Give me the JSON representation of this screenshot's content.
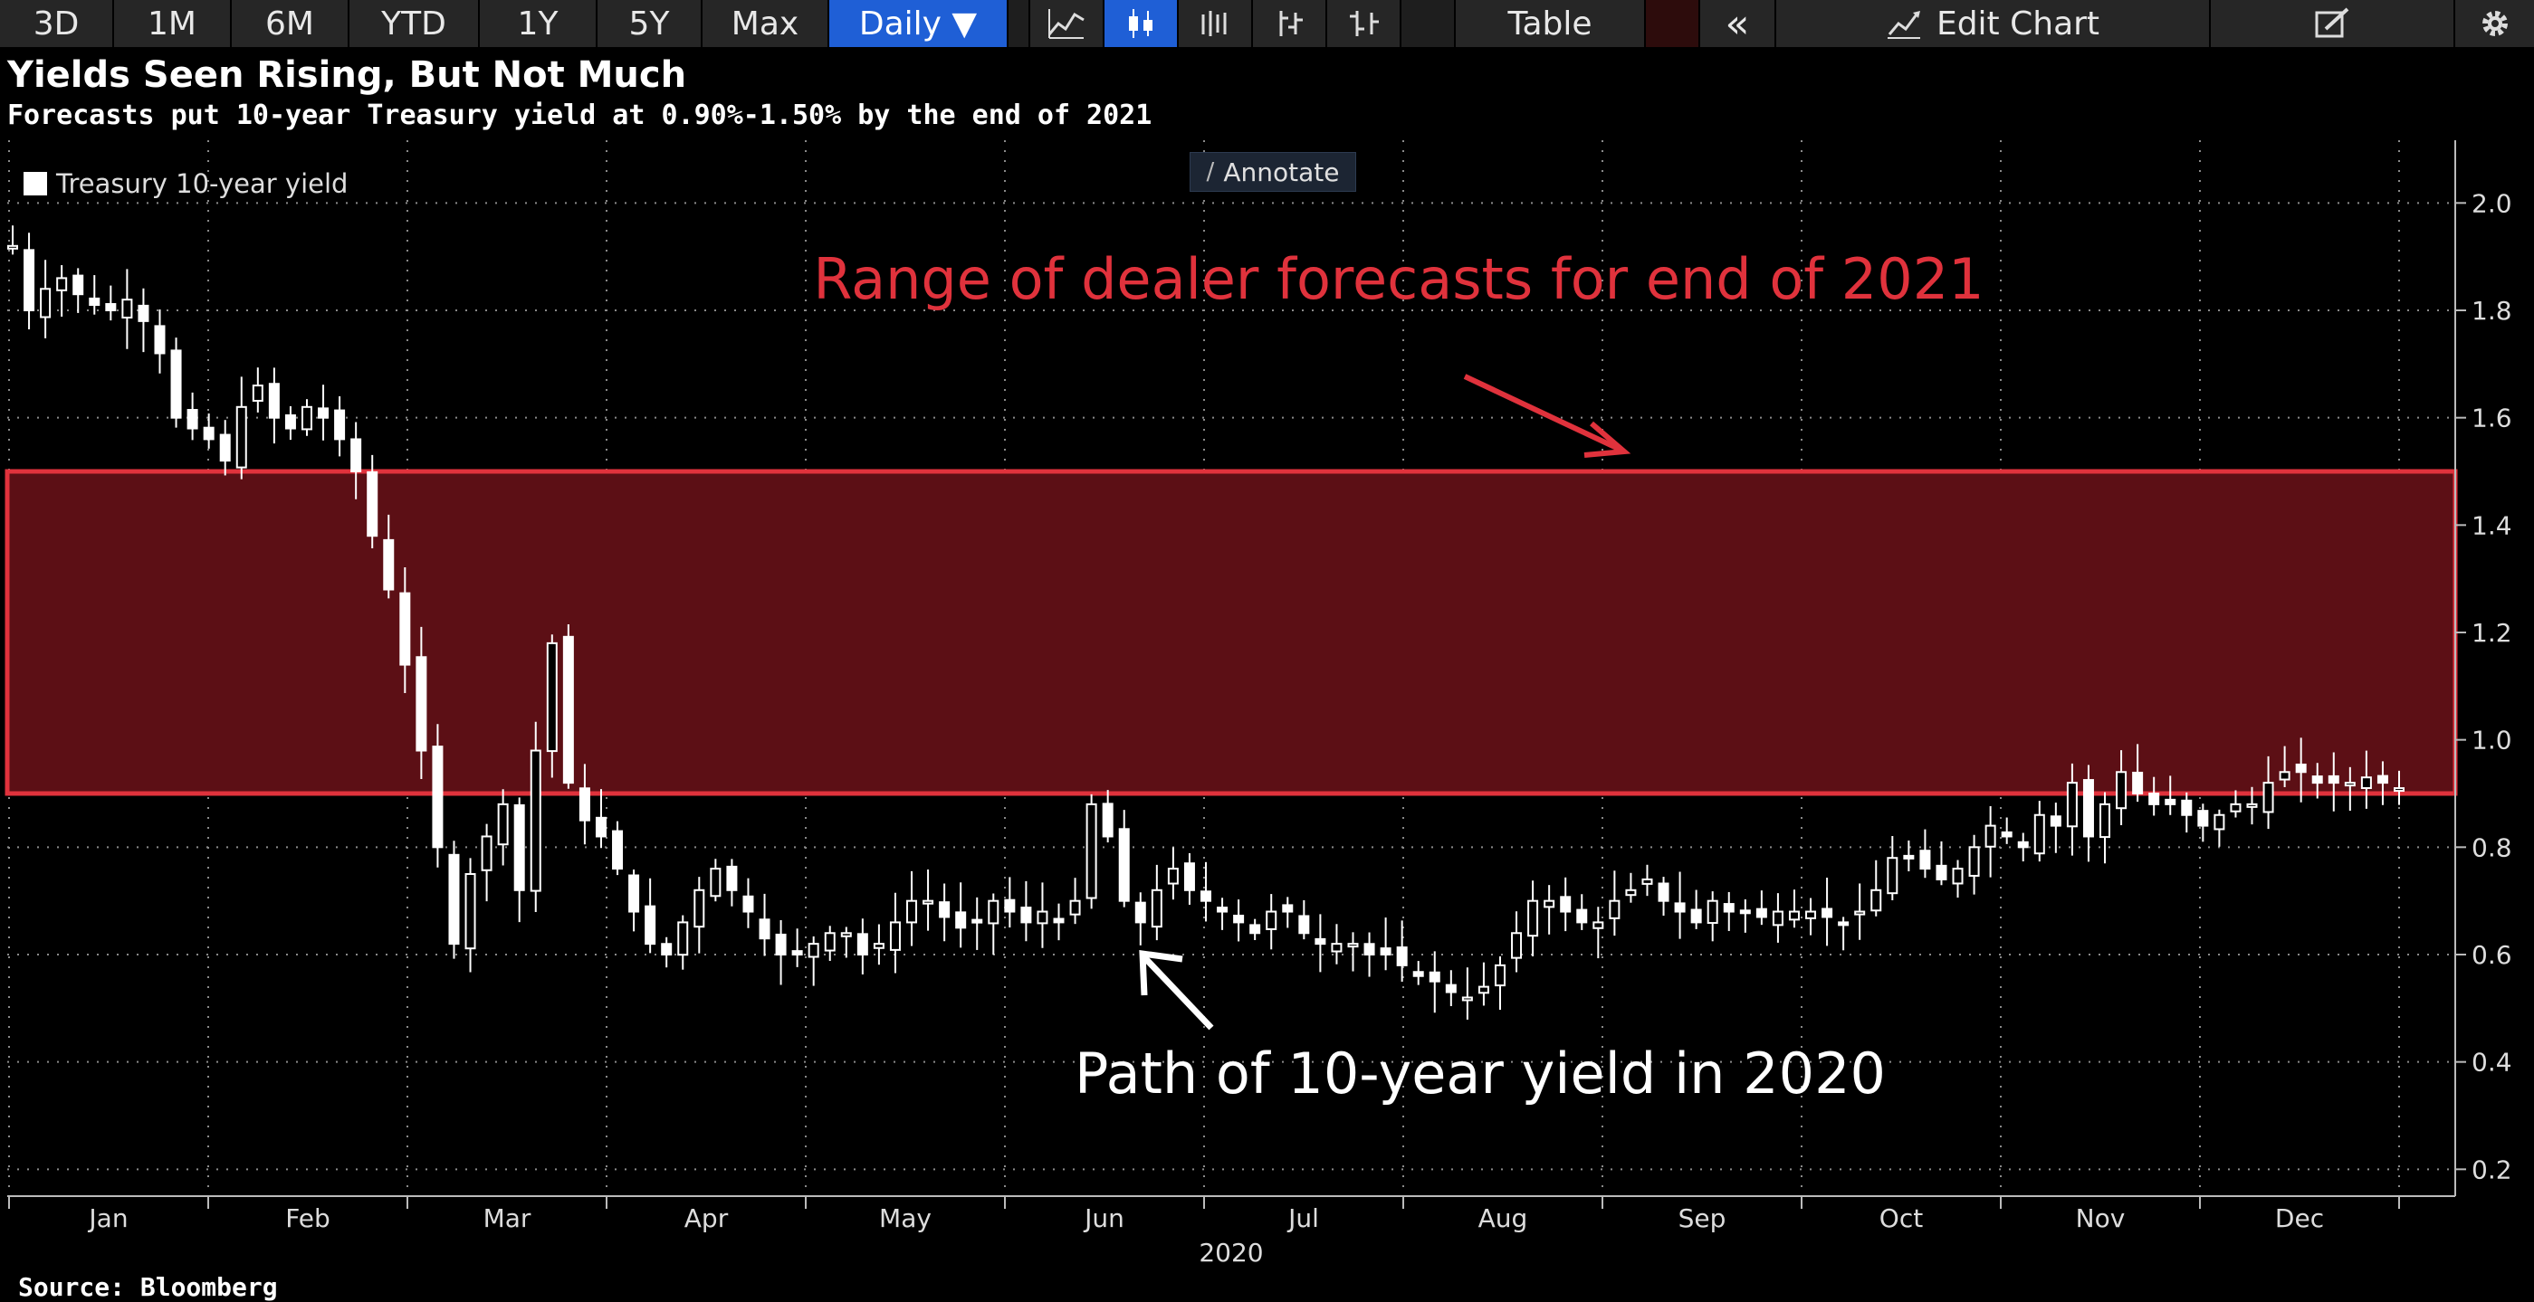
{
  "toolbar": {
    "ranges": [
      "3D",
      "1M",
      "6M",
      "YTD",
      "1Y",
      "5Y",
      "Max"
    ],
    "frequency": "Daily ▼",
    "table_label": "Table",
    "collapse_glyph": "«",
    "edit_chart_label": "Edit Chart",
    "icons": [
      "line-chart-icon",
      "candlestick-icon",
      "bar-ohlc-icon",
      "hlc-icon",
      "ohlc-icon"
    ]
  },
  "chart_title": "Yields Seen Rising, But Not Much",
  "chart_subtitle": "Forecasts put 10-year Treasury yield at 0.90%-1.50% by the end of 2021",
  "annotate_label": "Annotate",
  "source": "Source: Bloomberg",
  "colors": {
    "band_fill": "#5c0f15",
    "band_border": "#e0323c",
    "annotation_red": "#e0323c",
    "candles": "#ffffff",
    "active_button": "#1f5fd6"
  },
  "chart_data": {
    "type": "candlestick",
    "legend": [
      "Treasury 10-year yield"
    ],
    "legend_position": "top-left",
    "x_label": "2020",
    "x_ticks": [
      "Jan",
      "Feb",
      "Mar",
      "Apr",
      "May",
      "Jun",
      "Jul",
      "Aug",
      "Sep",
      "Oct",
      "Nov",
      "Dec"
    ],
    "y_ticks": [
      "2.0",
      "1.8",
      "1.6",
      "1.4",
      "1.2",
      "1.0",
      "0.8",
      "0.6",
      "0.4",
      "0.2"
    ],
    "ylim": [
      0.15,
      2.1
    ],
    "grid": true,
    "band": {
      "low": 0.9,
      "high": 1.5
    },
    "annotations": [
      {
        "text": "Range of dealer forecasts for end of 2021",
        "color": "red"
      },
      {
        "text": "Path of 10-year yield in 2020",
        "color": "white"
      }
    ],
    "series": [
      {
        "name": "Treasury 10-year yield",
        "values": [
          1.92,
          1.8,
          1.84,
          1.86,
          1.83,
          1.81,
          1.8,
          1.82,
          1.78,
          1.72,
          1.6,
          1.58,
          1.56,
          1.52,
          1.62,
          1.66,
          1.6,
          1.58,
          1.62,
          1.6,
          1.56,
          1.5,
          1.38,
          1.28,
          1.14,
          0.98,
          0.8,
          0.62,
          0.75,
          0.82,
          0.88,
          0.72,
          0.98,
          1.18,
          0.92,
          0.85,
          0.82,
          0.76,
          0.68,
          0.62,
          0.6,
          0.66,
          0.72,
          0.76,
          0.72,
          0.68,
          0.63,
          0.6,
          0.6,
          0.62,
          0.64,
          0.64,
          0.6,
          0.62,
          0.66,
          0.7,
          0.7,
          0.67,
          0.65,
          0.66,
          0.7,
          0.68,
          0.66,
          0.68,
          0.66,
          0.7,
          0.88,
          0.82,
          0.7,
          0.66,
          0.72,
          0.76,
          0.72,
          0.7,
          0.68,
          0.66,
          0.64,
          0.68,
          0.68,
          0.64,
          0.62,
          0.62,
          0.62,
          0.6,
          0.6,
          0.58,
          0.56,
          0.55,
          0.53,
          0.52,
          0.54,
          0.58,
          0.64,
          0.7,
          0.7,
          0.68,
          0.66,
          0.66,
          0.7,
          0.72,
          0.74,
          0.7,
          0.68,
          0.66,
          0.7,
          0.68,
          0.68,
          0.67,
          0.68,
          0.68,
          0.68,
          0.67,
          0.66,
          0.68,
          0.72,
          0.78,
          0.78,
          0.76,
          0.74,
          0.76,
          0.8,
          0.84,
          0.82,
          0.8,
          0.86,
          0.84,
          0.92,
          0.82,
          0.88,
          0.94,
          0.9,
          0.88,
          0.88,
          0.86,
          0.84,
          0.86,
          0.88,
          0.88,
          0.92,
          0.94,
          0.94,
          0.92,
          0.92,
          0.92,
          0.93,
          0.92,
          0.91
        ]
      }
    ]
  }
}
